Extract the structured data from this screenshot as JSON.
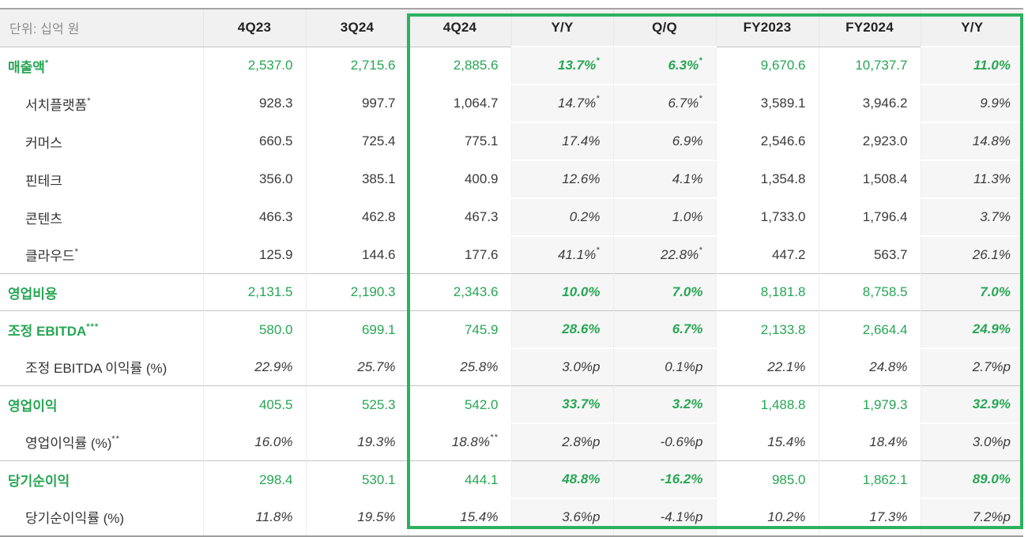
{
  "chart_data": {
    "type": "table",
    "unit_label": "단위: 십억 원",
    "columns": [
      "4Q23",
      "3Q24",
      "4Q24",
      "Y/Y",
      "Q/Q",
      "FY2023",
      "FY2024",
      "Y/Y"
    ],
    "highlighted_columns": [
      "4Q24",
      "Y/Y",
      "Q/Q",
      "FY2023",
      "FY2024",
      "Y/Y"
    ],
    "rows": [
      {
        "label": "매출액*",
        "style": "primary",
        "section_start": false,
        "values": [
          "2,537.0",
          "2,715.6",
          "2,885.6",
          "13.7%*",
          "6.3%*",
          "9,670.6",
          "10,737.7",
          "11.0%"
        ]
      },
      {
        "label": "서치플랫폼*",
        "style": "sub",
        "section_start": false,
        "values": [
          "928.3",
          "997.7",
          "1,064.7",
          "14.7%*",
          "6.7%*",
          "3,589.1",
          "3,946.2",
          "9.9%"
        ]
      },
      {
        "label": "커머스",
        "style": "sub",
        "section_start": false,
        "values": [
          "660.5",
          "725.4",
          "775.1",
          "17.4%",
          "6.9%",
          "2,546.6",
          "2,923.0",
          "14.8%"
        ]
      },
      {
        "label": "핀테크",
        "style": "sub",
        "section_start": false,
        "values": [
          "356.0",
          "385.1",
          "400.9",
          "12.6%",
          "4.1%",
          "1,354.8",
          "1,508.4",
          "11.3%"
        ]
      },
      {
        "label": "콘텐츠",
        "style": "sub",
        "section_start": false,
        "values": [
          "466.3",
          "462.8",
          "467.3",
          "0.2%",
          "1.0%",
          "1,733.0",
          "1,796.4",
          "3.7%"
        ]
      },
      {
        "label": "클라우드*",
        "style": "sub",
        "section_start": false,
        "values": [
          "125.9",
          "144.6",
          "177.6",
          "41.1%*",
          "22.8%*",
          "447.2",
          "563.7",
          "26.1%"
        ]
      },
      {
        "label": "영업비용",
        "style": "primary",
        "section_start": true,
        "values": [
          "2,131.5",
          "2,190.3",
          "2,343.6",
          "10.0%",
          "7.0%",
          "8,181.8",
          "8,758.5",
          "7.0%"
        ]
      },
      {
        "label": "조정 EBITDA***",
        "style": "primary",
        "section_start": true,
        "values": [
          "580.0",
          "699.1",
          "745.9",
          "28.6%",
          "6.7%",
          "2,133.8",
          "2,664.4",
          "24.9%"
        ]
      },
      {
        "label": "조정 EBITDA 이익률 (%)",
        "style": "ratio",
        "section_start": false,
        "values": [
          "22.9%",
          "25.7%",
          "25.8%",
          "3.0%p",
          "0.1%p",
          "22.1%",
          "24.8%",
          "2.7%p"
        ]
      },
      {
        "label": "영업이익",
        "style": "primary",
        "section_start": true,
        "values": [
          "405.5",
          "525.3",
          "542.0",
          "33.7%",
          "3.2%",
          "1,488.8",
          "1,979.3",
          "32.9%"
        ]
      },
      {
        "label": "영업이익률 (%)**",
        "style": "ratio",
        "section_start": false,
        "values": [
          "16.0%",
          "19.3%",
          "18.8%**",
          "2.8%p",
          "-0.6%p",
          "15.4%",
          "18.4%",
          "3.0%p"
        ]
      },
      {
        "label": "당기순이익",
        "style": "primary",
        "section_start": true,
        "values": [
          "298.4",
          "530.1",
          "444.1",
          "48.8%",
          "-16.2%",
          "985.0",
          "1,862.1",
          "89.0%"
        ]
      },
      {
        "label": "당기순이익률 (%)",
        "style": "ratio",
        "section_start": false,
        "values": [
          "11.8%",
          "19.5%",
          "15.4%",
          "3.6%p",
          "-4.1%p",
          "10.2%",
          "17.3%",
          "7.2%p"
        ]
      }
    ]
  },
  "colors": {
    "accent_green": "#27a654",
    "highlight_border_green": "#2db15f",
    "header_bg": "#f1f1f1",
    "shaded_column_bg": "#f6f6f6"
  }
}
